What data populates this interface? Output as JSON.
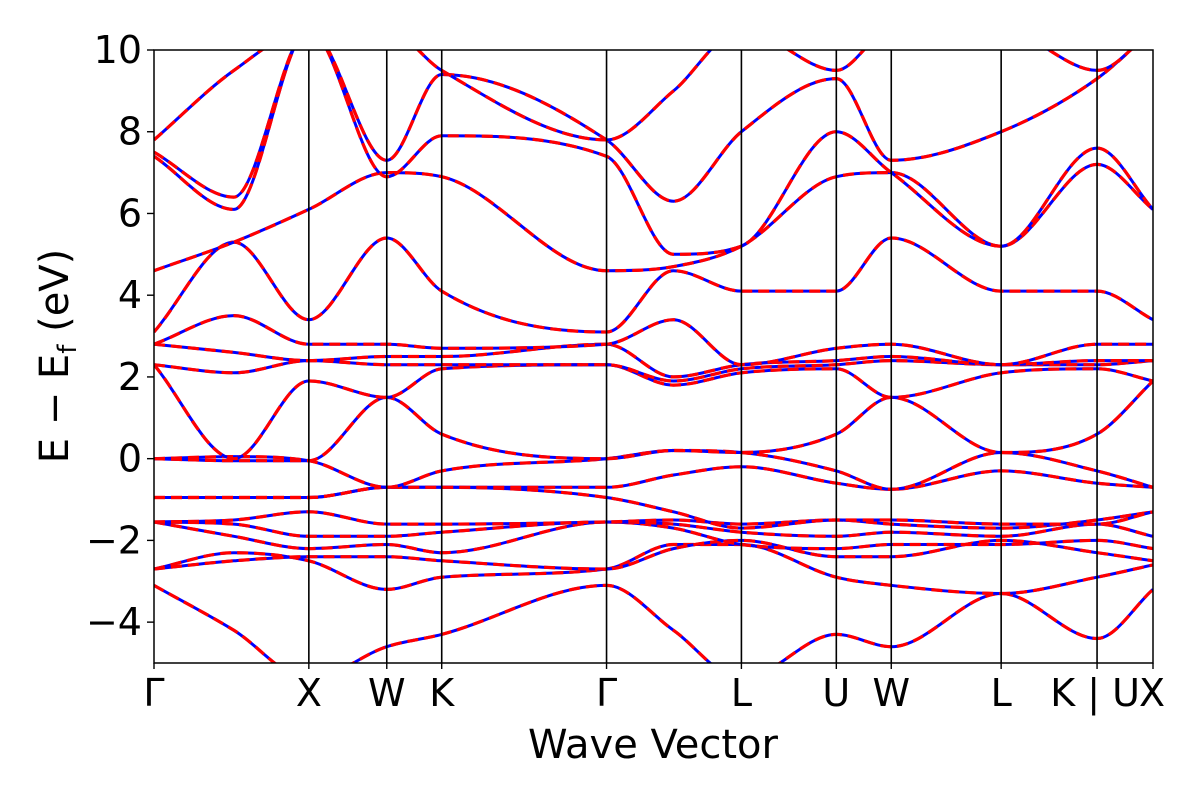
{
  "chart_data": {
    "type": "line",
    "title": "",
    "xlabel": "Wave Vector",
    "ylabel": "E − E_f (eV)",
    "ylabel_parts": {
      "main": "E − E",
      "sub": "f",
      "unit": " (eV)"
    },
    "ylim": [
      -5,
      10
    ],
    "yticks": [
      -4,
      -2,
      0,
      2,
      4,
      6,
      8,
      10
    ],
    "xlim": [
      0,
      1
    ],
    "high_symmetry_points": [
      {
        "label": "Γ",
        "k": 0.0
      },
      {
        "label": "X",
        "k": 0.155
      },
      {
        "label": "W",
        "k": 0.233
      },
      {
        "label": "K",
        "k": 0.288
      },
      {
        "label": "Γ",
        "k": 0.453
      },
      {
        "label": "L",
        "k": 0.588
      },
      {
        "label": "U",
        "k": 0.683
      },
      {
        "label": "W",
        "k": 0.738
      },
      {
        "label": "L",
        "k": 0.848
      },
      {
        "label": "K | U",
        "k": 0.944
      },
      {
        "label": "X",
        "k": 1.0
      }
    ],
    "series_styles": [
      {
        "color": "#0000ff",
        "style": "solid"
      },
      {
        "color": "#ff0000",
        "style": "dashed"
      }
    ],
    "bands": [
      {
        "k": [
          0,
          0.08,
          0.155,
          0.233,
          0.288,
          0.453,
          0.52,
          0.588,
          0.683,
          0.738,
          0.848,
          0.944,
          1.0
        ],
        "e": [
          -3.1,
          -4.2,
          -5.4,
          -4.6,
          -4.3,
          -3.1,
          -4.2,
          -5.4,
          -4.3,
          -4.6,
          -3.3,
          -4.4,
          -3.2
        ]
      },
      {
        "k": [
          0,
          0.08,
          0.155,
          0.233,
          0.288,
          0.453,
          0.52,
          0.588,
          0.683,
          0.738,
          0.848,
          0.944,
          1.0
        ],
        "e": [
          -2.7,
          -2.3,
          -2.5,
          -3.2,
          -2.9,
          -2.7,
          -2.1,
          -2.1,
          -2.9,
          -3.1,
          -3.3,
          -2.9,
          -2.6
        ]
      },
      {
        "k": [
          0,
          0.08,
          0.155,
          0.233,
          0.288,
          0.453,
          0.52,
          0.588,
          0.683,
          0.738,
          0.848,
          0.944,
          1.0
        ],
        "e": [
          -2.7,
          -2.5,
          -2.4,
          -2.4,
          -2.5,
          -2.7,
          -2.2,
          -2.0,
          -2.4,
          -2.4,
          -2.0,
          -2.3,
          -2.5
        ]
      },
      {
        "k": [
          0,
          0.08,
          0.155,
          0.233,
          0.288,
          0.453,
          0.52,
          0.588,
          0.683,
          0.738,
          0.848,
          0.944,
          1.0
        ],
        "e": [
          -1.55,
          -1.9,
          -2.2,
          -2.1,
          -2.3,
          -1.55,
          -1.7,
          -2.1,
          -2.2,
          -2.1,
          -2.1,
          -2.0,
          -2.2
        ]
      },
      {
        "k": [
          0,
          0.08,
          0.155,
          0.233,
          0.288,
          0.453,
          0.52,
          0.588,
          0.683,
          0.738,
          0.848,
          0.944,
          1.0
        ],
        "e": [
          -1.55,
          -1.6,
          -1.9,
          -1.9,
          -1.8,
          -1.55,
          -1.6,
          -1.8,
          -1.9,
          -1.8,
          -1.9,
          -1.6,
          -1.9
        ]
      },
      {
        "k": [
          0,
          0.08,
          0.155,
          0.233,
          0.288,
          0.453,
          0.52,
          0.588,
          0.683,
          0.738,
          0.848,
          0.944,
          1.0
        ],
        "e": [
          -1.55,
          -1.5,
          -1.3,
          -1.6,
          -1.6,
          -1.55,
          -1.5,
          -1.6,
          -1.5,
          -1.6,
          -1.7,
          -1.5,
          -1.3
        ]
      },
      {
        "k": [
          0,
          0.08,
          0.155,
          0.233,
          0.288,
          0.453,
          0.52,
          0.588,
          0.683,
          0.738,
          0.848,
          0.944,
          1.0
        ],
        "e": [
          -0.95,
          -0.95,
          -0.95,
          -0.7,
          -0.7,
          -0.95,
          -1.3,
          -1.7,
          -1.5,
          -1.5,
          -1.6,
          -1.6,
          -1.3
        ]
      },
      {
        "k": [
          0,
          0.08,
          0.155,
          0.233,
          0.288,
          0.453,
          0.52,
          0.588,
          0.683,
          0.738,
          0.848,
          0.944,
          1.0
        ],
        "e": [
          -0.95,
          -0.95,
          -0.95,
          -0.7,
          -0.7,
          -0.7,
          -0.4,
          -0.2,
          -0.6,
          -0.75,
          -0.3,
          -0.6,
          -0.7
        ]
      },
      {
        "k": [
          0,
          0.08,
          0.155,
          0.233,
          0.288,
          0.453,
          0.52,
          0.588,
          0.683,
          0.738,
          0.848,
          0.944,
          1.0
        ],
        "e": [
          0.0,
          0.05,
          -0.05,
          -0.7,
          -0.3,
          0.0,
          0.2,
          0.15,
          -0.3,
          -0.75,
          0.15,
          -0.3,
          -0.7
        ]
      },
      {
        "k": [
          0,
          0.08,
          0.155,
          0.233,
          0.288,
          0.453,
          0.52,
          0.588,
          0.683,
          0.738,
          0.848,
          0.944,
          1.0
        ],
        "e": [
          0.0,
          -0.05,
          -0.05,
          1.5,
          0.6,
          0.0,
          0.2,
          0.15,
          0.6,
          1.5,
          0.15,
          0.6,
          1.9
        ]
      },
      {
        "k": [
          0,
          0.08,
          0.155,
          0.233,
          0.288,
          0.453,
          0.52,
          0.588,
          0.683,
          0.738,
          0.848,
          0.944,
          1.0
        ],
        "e": [
          2.3,
          0.0,
          1.9,
          1.5,
          2.2,
          2.3,
          1.8,
          2.1,
          2.2,
          1.5,
          2.1,
          2.2,
          1.9
        ]
      },
      {
        "k": [
          0,
          0.08,
          0.155,
          0.233,
          0.288,
          0.453,
          0.52,
          0.588,
          0.683,
          0.738,
          0.848,
          0.944,
          1.0
        ],
        "e": [
          2.3,
          2.1,
          2.4,
          2.3,
          2.3,
          2.3,
          1.9,
          2.2,
          2.3,
          2.4,
          2.3,
          2.3,
          2.4
        ]
      },
      {
        "k": [
          0,
          0.08,
          0.155,
          0.233,
          0.288,
          0.453,
          0.52,
          0.588,
          0.683,
          0.738,
          0.848,
          0.944,
          1.0
        ],
        "e": [
          2.8,
          2.6,
          2.4,
          2.5,
          2.5,
          2.8,
          2.0,
          2.3,
          2.4,
          2.5,
          2.3,
          2.4,
          2.4
        ]
      },
      {
        "k": [
          0,
          0.08,
          0.155,
          0.233,
          0.288,
          0.453,
          0.52,
          0.588,
          0.683,
          0.738,
          0.848,
          0.944,
          1.0
        ],
        "e": [
          2.8,
          3.5,
          2.8,
          2.8,
          2.7,
          2.8,
          3.4,
          2.3,
          2.7,
          2.8,
          2.3,
          2.8,
          2.8
        ]
      },
      {
        "k": [
          0,
          0.08,
          0.155,
          0.233,
          0.288,
          0.453,
          0.52,
          0.588,
          0.683,
          0.738,
          0.848,
          0.944,
          1.0
        ],
        "e": [
          3.1,
          5.3,
          3.4,
          5.4,
          4.1,
          3.1,
          4.6,
          4.1,
          4.1,
          5.4,
          4.1,
          4.1,
          3.4
        ]
      },
      {
        "k": [
          0,
          0.08,
          0.155,
          0.233,
          0.288,
          0.453,
          0.52,
          0.588,
          0.683,
          0.738,
          0.848,
          0.944,
          1.0
        ],
        "e": [
          4.6,
          5.3,
          6.1,
          7.0,
          6.9,
          4.6,
          4.7,
          5.2,
          6.9,
          7.0,
          5.2,
          7.2,
          6.1
        ]
      },
      {
        "k": [
          0,
          0.08,
          0.155,
          0.233,
          0.288,
          0.453,
          0.52,
          0.588,
          0.683,
          0.738,
          0.848,
          0.944,
          1.0
        ],
        "e": [
          7.4,
          6.1,
          10.5,
          6.9,
          7.9,
          7.4,
          5.0,
          5.2,
          8.0,
          7.0,
          5.2,
          7.6,
          6.1
        ]
      },
      {
        "k": [
          0,
          0.08,
          0.155,
          0.233,
          0.288,
          0.453,
          0.52,
          0.588,
          0.683,
          0.738,
          0.848,
          0.944,
          1.0
        ],
        "e": [
          7.5,
          6.4,
          10.5,
          7.3,
          9.4,
          7.8,
          6.3,
          8.0,
          9.3,
          7.3,
          8.0,
          9.3,
          10.5
        ]
      },
      {
        "k": [
          0,
          0.08,
          0.155,
          0.233,
          0.288,
          0.453,
          0.52,
          0.588,
          0.683,
          0.738,
          0.848,
          0.944,
          1.0
        ],
        "e": [
          7.8,
          9.5,
          10.5,
          10.5,
          9.5,
          7.8,
          9.0,
          10.5,
          9.5,
          10.5,
          10.5,
          9.5,
          10.5
        ]
      }
    ]
  }
}
